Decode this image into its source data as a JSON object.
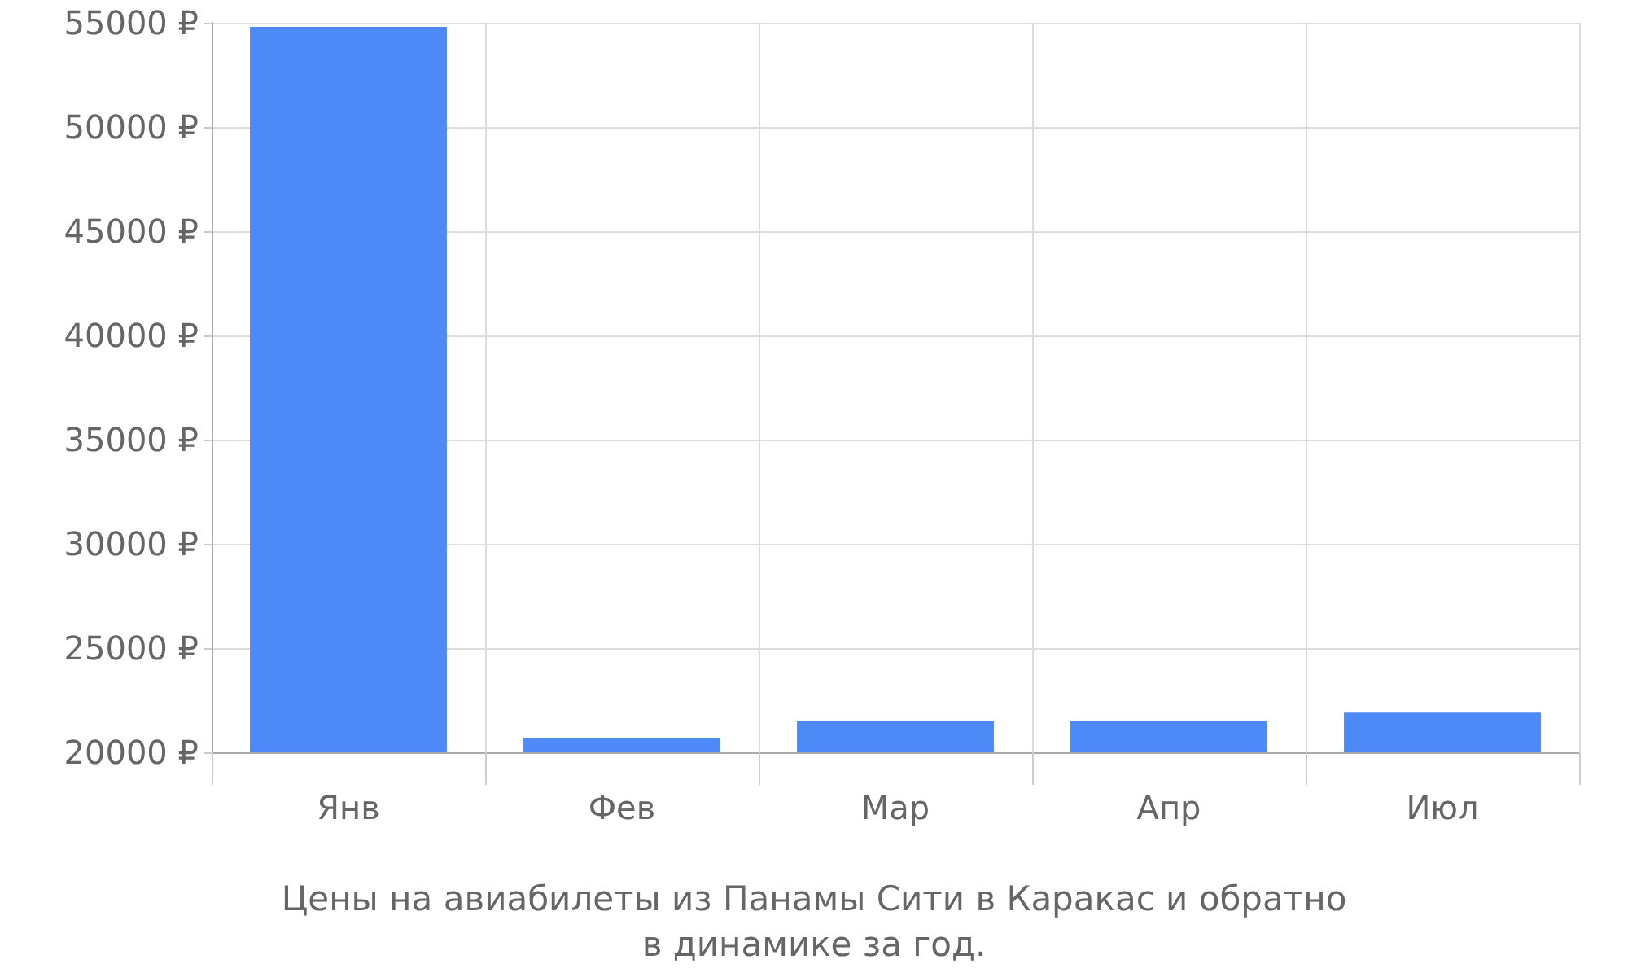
{
  "chart_data": {
    "type": "bar",
    "categories": [
      "Янв",
      "Фев",
      "Мар",
      "Апр",
      "Июл"
    ],
    "values": [
      54800,
      20700,
      21500,
      21500,
      21900
    ],
    "color": "#4e89f8",
    "ylim": [
      20000,
      55000
    ],
    "yticks": [
      {
        "value": 20000,
        "label": "20000 ₽"
      },
      {
        "value": 25000,
        "label": "25000 ₽"
      },
      {
        "value": 30000,
        "label": "30000 ₽"
      },
      {
        "value": 35000,
        "label": "35000 ₽"
      },
      {
        "value": 40000,
        "label": "40000 ₽"
      },
      {
        "value": 45000,
        "label": "45000 ₽"
      },
      {
        "value": 50000,
        "label": "50000 ₽"
      },
      {
        "value": 55000,
        "label": "55000 ₽"
      }
    ],
    "grid": true,
    "annotations": [
      "Цены на авиабилеты из Панамы Сити в Каракас и обратно",
      "в динамике за год."
    ]
  }
}
